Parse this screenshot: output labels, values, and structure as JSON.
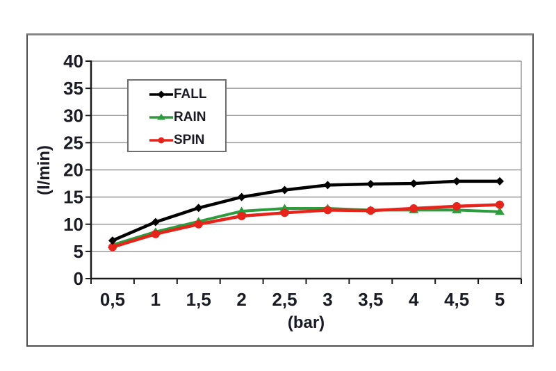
{
  "chart_data": {
    "type": "line",
    "x": [
      0.5,
      1,
      1.5,
      2,
      2.5,
      3,
      3.5,
      4,
      4.5,
      5
    ],
    "x_tick_labels": [
      "0,5",
      "1",
      "1,5",
      "2",
      "2,5",
      "3",
      "3,5",
      "4",
      "4,5",
      "5"
    ],
    "series": [
      {
        "name": "FALL",
        "color": "#000000",
        "marker": "diamond",
        "values": [
          7.0,
          10.4,
          13.0,
          15.0,
          16.3,
          17.2,
          17.4,
          17.5,
          17.9,
          17.9
        ]
      },
      {
        "name": "RAIN",
        "color": "#2e9b3e",
        "marker": "triangle",
        "values": [
          6.2,
          8.6,
          10.5,
          12.4,
          12.9,
          12.9,
          12.6,
          12.6,
          12.6,
          12.3
        ]
      },
      {
        "name": "SPIN",
        "color": "#e7241c",
        "marker": "circle",
        "values": [
          5.8,
          8.2,
          10.0,
          11.5,
          12.1,
          12.6,
          12.5,
          12.9,
          13.3,
          13.6
        ]
      }
    ],
    "xlabel": "(bar)",
    "ylabel": "(l/min)",
    "ylim": [
      0,
      40
    ],
    "yticks": [
      0,
      5,
      10,
      15,
      20,
      25,
      30,
      35,
      40
    ],
    "grid": true,
    "legend_position": "top-left-inside"
  },
  "colors": {
    "grid_line": "#9a9a9a",
    "plot_right_border": "#9a9a9a",
    "axis_line": "#1a1a1a",
    "tick_text": "#1b1b26",
    "frame_border": "#4d4d4d",
    "background": "#ffffff"
  }
}
